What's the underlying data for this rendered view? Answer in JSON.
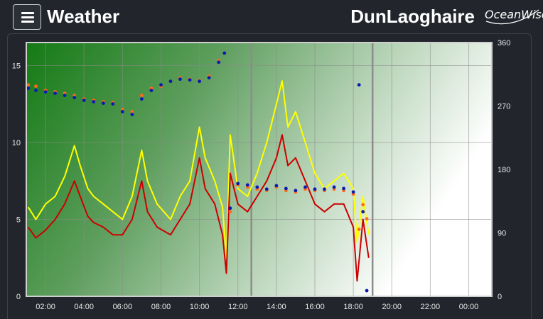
{
  "header": {
    "title": "Weather",
    "station": "DunLaoghaire",
    "logo_text": "OceanWise"
  },
  "chart_data": {
    "type": "line",
    "x_unit": "hour of day (02:00 = 2)",
    "x_ticks": [
      "02:00",
      "04:00",
      "06:00",
      "08:00",
      "10:00",
      "12:00",
      "14:00",
      "16:00",
      "18:00",
      "20:00",
      "22:00",
      "00:00"
    ],
    "x_tick_values": [
      2,
      4,
      6,
      8,
      10,
      12,
      14,
      16,
      18,
      20,
      22,
      24
    ],
    "xlim": [
      1.0,
      25.2
    ],
    "ylim": [
      0,
      16.5
    ],
    "yticks": [
      0,
      5,
      10,
      15
    ],
    "y2lim": [
      0,
      360
    ],
    "y2ticks": [
      0,
      90,
      180,
      270,
      360
    ],
    "grid": true,
    "series": [
      {
        "type": "line",
        "color": "#ffff00",
        "points": [
          [
            1.1,
            5.8
          ],
          [
            1.5,
            5.0
          ],
          [
            2.0,
            6.0
          ],
          [
            2.5,
            6.5
          ],
          [
            3.0,
            7.8
          ],
          [
            3.5,
            9.8
          ],
          [
            3.8,
            8.5
          ],
          [
            4.2,
            7.0
          ],
          [
            4.5,
            6.5
          ],
          [
            5.0,
            6.0
          ],
          [
            5.5,
            5.5
          ],
          [
            6.0,
            5.0
          ],
          [
            6.5,
            6.5
          ],
          [
            7.0,
            9.5
          ],
          [
            7.3,
            7.5
          ],
          [
            7.8,
            6.0
          ],
          [
            8.5,
            5.0
          ],
          [
            9.0,
            6.5
          ],
          [
            9.5,
            7.5
          ],
          [
            10.0,
            11.0
          ],
          [
            10.3,
            9.0
          ],
          [
            10.8,
            7.5
          ],
          [
            11.2,
            5.8
          ],
          [
            11.4,
            2.5
          ],
          [
            11.6,
            10.5
          ],
          [
            12.0,
            7.0
          ],
          [
            12.5,
            6.5
          ],
          [
            13.0,
            8.0
          ],
          [
            13.5,
            10.0
          ],
          [
            14.0,
            12.5
          ],
          [
            14.3,
            14.0
          ],
          [
            14.6,
            11.0
          ],
          [
            15.0,
            12.0
          ],
          [
            15.5,
            10.0
          ],
          [
            16.0,
            8.0
          ],
          [
            16.5,
            7.0
          ],
          [
            17.0,
            7.5
          ],
          [
            17.5,
            8.0
          ],
          [
            18.0,
            7.0
          ],
          [
            18.2,
            3.5
          ],
          [
            18.5,
            6.5
          ],
          [
            18.8,
            4.0
          ]
        ]
      },
      {
        "type": "line",
        "color": "#cc0000",
        "points": [
          [
            1.1,
            4.5
          ],
          [
            1.5,
            3.8
          ],
          [
            2.0,
            4.3
          ],
          [
            2.5,
            5.0
          ],
          [
            3.0,
            6.0
          ],
          [
            3.5,
            7.5
          ],
          [
            3.8,
            6.5
          ],
          [
            4.2,
            5.2
          ],
          [
            4.5,
            4.8
          ],
          [
            5.0,
            4.5
          ],
          [
            5.5,
            4.0
          ],
          [
            6.0,
            4.0
          ],
          [
            6.5,
            5.0
          ],
          [
            7.0,
            7.5
          ],
          [
            7.3,
            5.5
          ],
          [
            7.8,
            4.5
          ],
          [
            8.5,
            4.0
          ],
          [
            9.0,
            5.0
          ],
          [
            9.5,
            6.0
          ],
          [
            10.0,
            9.0
          ],
          [
            10.3,
            7.0
          ],
          [
            10.8,
            6.0
          ],
          [
            11.2,
            4.0
          ],
          [
            11.4,
            1.5
          ],
          [
            11.6,
            8.0
          ],
          [
            12.0,
            6.0
          ],
          [
            12.5,
            5.5
          ],
          [
            13.0,
            6.5
          ],
          [
            13.5,
            7.5
          ],
          [
            14.0,
            9.0
          ],
          [
            14.3,
            10.5
          ],
          [
            14.6,
            8.5
          ],
          [
            15.0,
            9.0
          ],
          [
            15.5,
            7.5
          ],
          [
            16.0,
            6.0
          ],
          [
            16.5,
            5.5
          ],
          [
            17.0,
            6.0
          ],
          [
            17.5,
            6.0
          ],
          [
            18.0,
            4.5
          ],
          [
            18.2,
            1.0
          ],
          [
            18.5,
            5.0
          ],
          [
            18.8,
            2.5
          ]
        ]
      },
      {
        "type": "scatter",
        "color": "#ff6a1a",
        "axis": "right",
        "points": [
          [
            1.1,
            300
          ],
          [
            1.5,
            298
          ],
          [
            2.0,
            292
          ],
          [
            2.5,
            290
          ],
          [
            3.0,
            288
          ],
          [
            3.5,
            285
          ],
          [
            4.0,
            280
          ],
          [
            4.5,
            278
          ],
          [
            5.0,
            276
          ],
          [
            5.5,
            275
          ],
          [
            6.0,
            265
          ],
          [
            6.5,
            262
          ],
          [
            7.0,
            285
          ],
          [
            7.5,
            295
          ],
          [
            8.0,
            298
          ],
          [
            8.5,
            305
          ],
          [
            9.0,
            310
          ],
          [
            9.5,
            308
          ],
          [
            10.0,
            306
          ],
          [
            10.5,
            312
          ],
          [
            11.0,
            335
          ],
          [
            11.3,
            345
          ],
          [
            11.6,
            120
          ],
          [
            12.0,
            158
          ],
          [
            12.5,
            155
          ],
          [
            13.0,
            152
          ],
          [
            13.5,
            150
          ],
          [
            14.0,
            155
          ],
          [
            14.5,
            150
          ],
          [
            15.0,
            148
          ],
          [
            15.5,
            152
          ],
          [
            16.0,
            150
          ],
          [
            16.5,
            150
          ],
          [
            17.0,
            152
          ],
          [
            17.5,
            150
          ],
          [
            18.0,
            145
          ],
          [
            18.3,
            95
          ],
          [
            18.5,
            130
          ],
          [
            18.7,
            110
          ]
        ]
      },
      {
        "type": "scatter",
        "color": "#0a1ab0",
        "axis": "right",
        "points": [
          [
            1.1,
            295
          ],
          [
            1.5,
            292
          ],
          [
            2.0,
            290
          ],
          [
            2.5,
            288
          ],
          [
            3.0,
            285
          ],
          [
            3.5,
            282
          ],
          [
            4.0,
            278
          ],
          [
            4.5,
            276
          ],
          [
            5.0,
            274
          ],
          [
            5.5,
            273
          ],
          [
            6.0,
            262
          ],
          [
            6.5,
            258
          ],
          [
            7.0,
            280
          ],
          [
            7.5,
            292
          ],
          [
            8.0,
            300
          ],
          [
            8.5,
            305
          ],
          [
            9.0,
            308
          ],
          [
            9.5,
            307
          ],
          [
            10.0,
            305
          ],
          [
            10.5,
            310
          ],
          [
            11.0,
            332
          ],
          [
            11.3,
            345
          ],
          [
            11.6,
            125
          ],
          [
            12.0,
            160
          ],
          [
            12.5,
            158
          ],
          [
            13.0,
            155
          ],
          [
            13.5,
            152
          ],
          [
            14.0,
            157
          ],
          [
            14.5,
            153
          ],
          [
            15.0,
            150
          ],
          [
            15.5,
            155
          ],
          [
            16.0,
            152
          ],
          [
            16.5,
            152
          ],
          [
            17.0,
            155
          ],
          [
            17.5,
            153
          ],
          [
            18.0,
            148
          ],
          [
            18.3,
            300
          ],
          [
            18.5,
            120
          ],
          [
            18.7,
            8
          ]
        ]
      }
    ]
  }
}
